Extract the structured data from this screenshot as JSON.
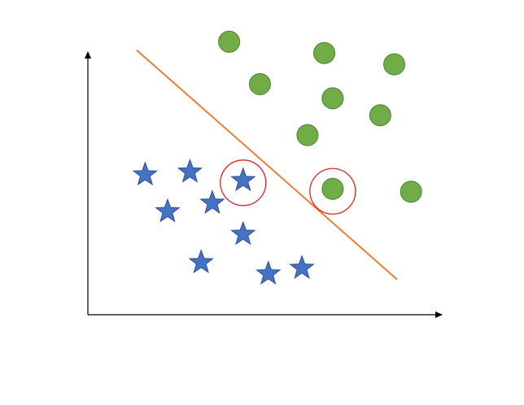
{
  "colors": {
    "background": "#ffffff",
    "axis": "#000000",
    "star_fill": "#4472c4",
    "star_stroke": "#2f528f",
    "circle_fill": "#70ad47",
    "circle_stroke": "#507e32",
    "boundary_line": "#ed7d31",
    "highlight_ring": "#e02020"
  },
  "axes": {
    "x_label": "",
    "y_label": ""
  },
  "classes": [
    {
      "id": "stars",
      "marker": "star-icon",
      "points": [
        {
          "x": 1.0,
          "y": 4.2
        },
        {
          "x": 2.6,
          "y": 4.3
        },
        {
          "x": 4.5,
          "y": 4.0,
          "highlighted": true
        },
        {
          "x": 1.8,
          "y": 2.9
        },
        {
          "x": 3.4,
          "y": 3.2
        },
        {
          "x": 4.5,
          "y": 2.1
        },
        {
          "x": 3.0,
          "y": 1.1
        },
        {
          "x": 5.4,
          "y": 0.7
        },
        {
          "x": 6.6,
          "y": 0.9
        }
      ]
    },
    {
      "id": "circles",
      "marker": "circle-icon",
      "points": [
        {
          "x": 4.0,
          "y": 8.9
        },
        {
          "x": 7.4,
          "y": 8.5
        },
        {
          "x": 9.9,
          "y": 8.1
        },
        {
          "x": 5.1,
          "y": 7.4
        },
        {
          "x": 7.7,
          "y": 6.9
        },
        {
          "x": 9.4,
          "y": 6.3
        },
        {
          "x": 6.8,
          "y": 5.6
        },
        {
          "x": 7.7,
          "y": 3.7,
          "highlighted": true
        },
        {
          "x": 10.5,
          "y": 3.6
        }
      ]
    }
  ],
  "decision_boundary": {
    "from": {
      "x": 0.7,
      "y": 8.6
    },
    "to": {
      "x": 10.0,
      "y": 0.5
    }
  },
  "domain": {
    "xmax": 12,
    "ymax": 9.5
  }
}
